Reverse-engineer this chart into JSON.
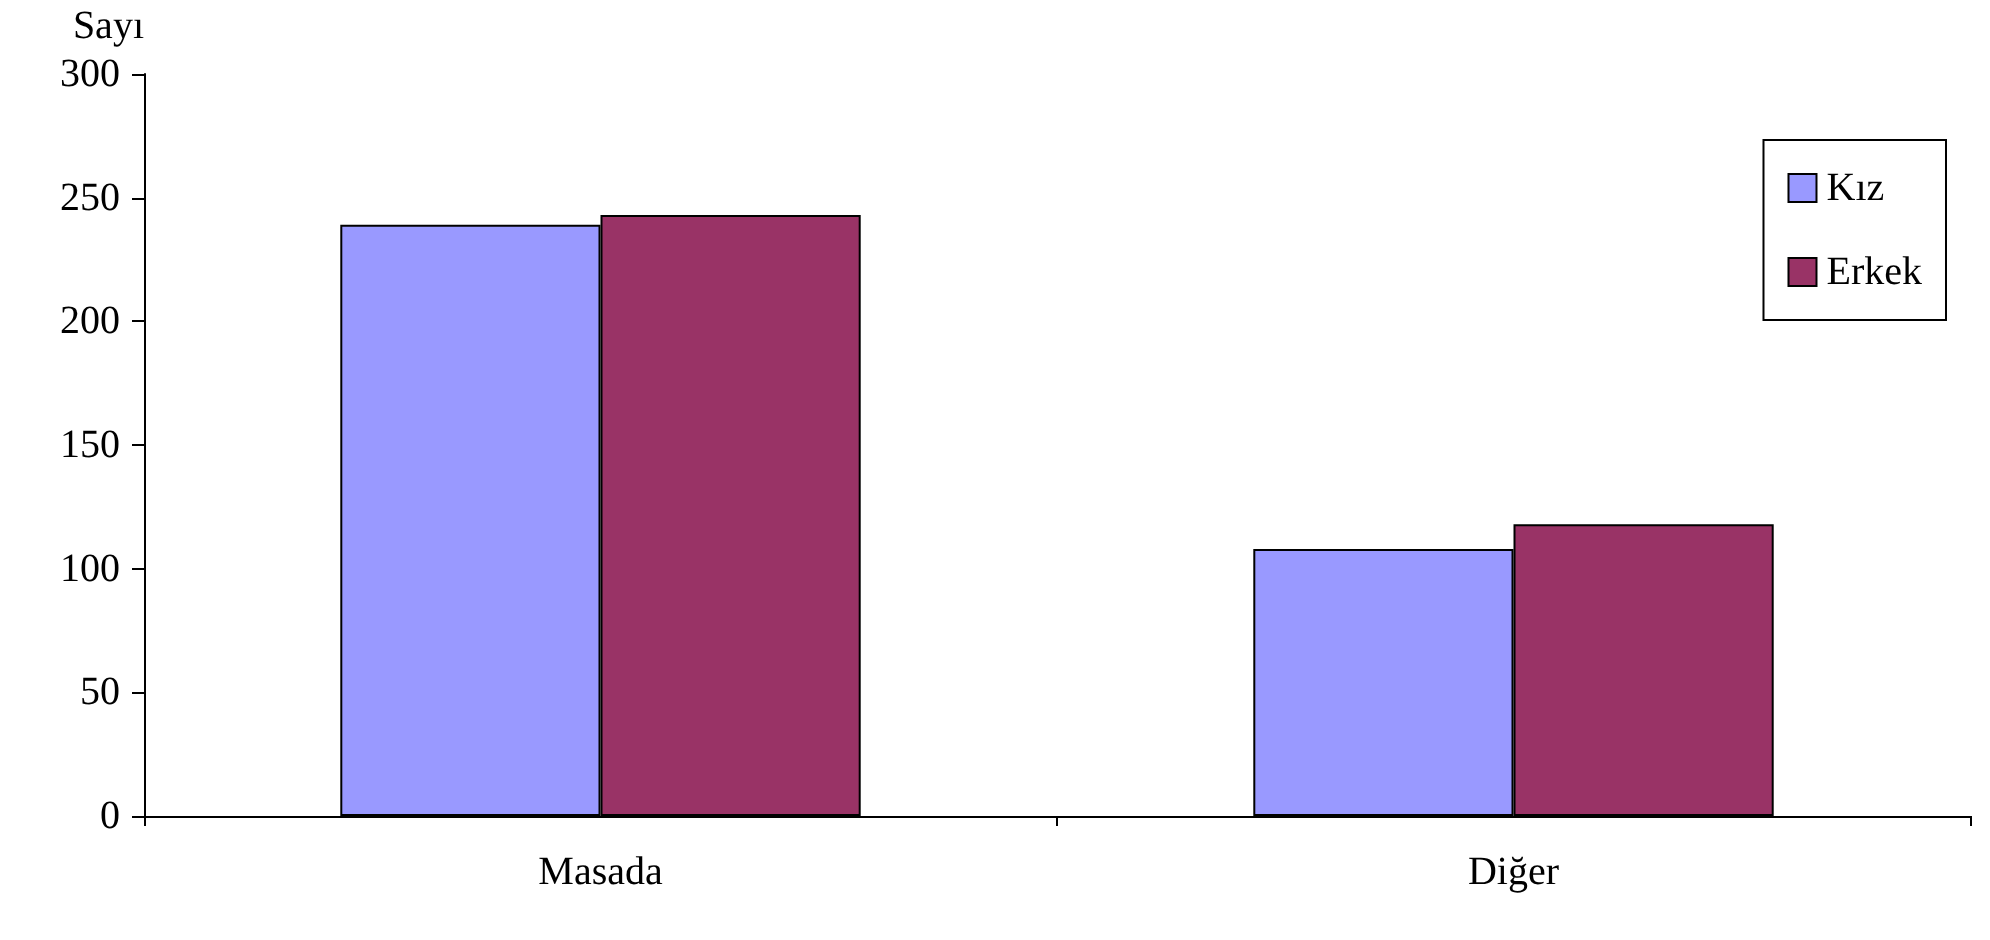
{
  "chart_data": {
    "type": "bar",
    "ylabel": "Sayı",
    "categories": [
      "Masada",
      "Diğer"
    ],
    "series": [
      {
        "name": "Kız",
        "color": "#9999ff",
        "values": [
          239,
          108
        ]
      },
      {
        "name": "Erkek",
        "color": "#993366",
        "values": [
          243,
          118
        ]
      }
    ],
    "ylim": [
      0,
      300
    ],
    "yticks": [
      0,
      50,
      100,
      150,
      200,
      250,
      300
    ],
    "grid": false,
    "legend": "top right"
  }
}
